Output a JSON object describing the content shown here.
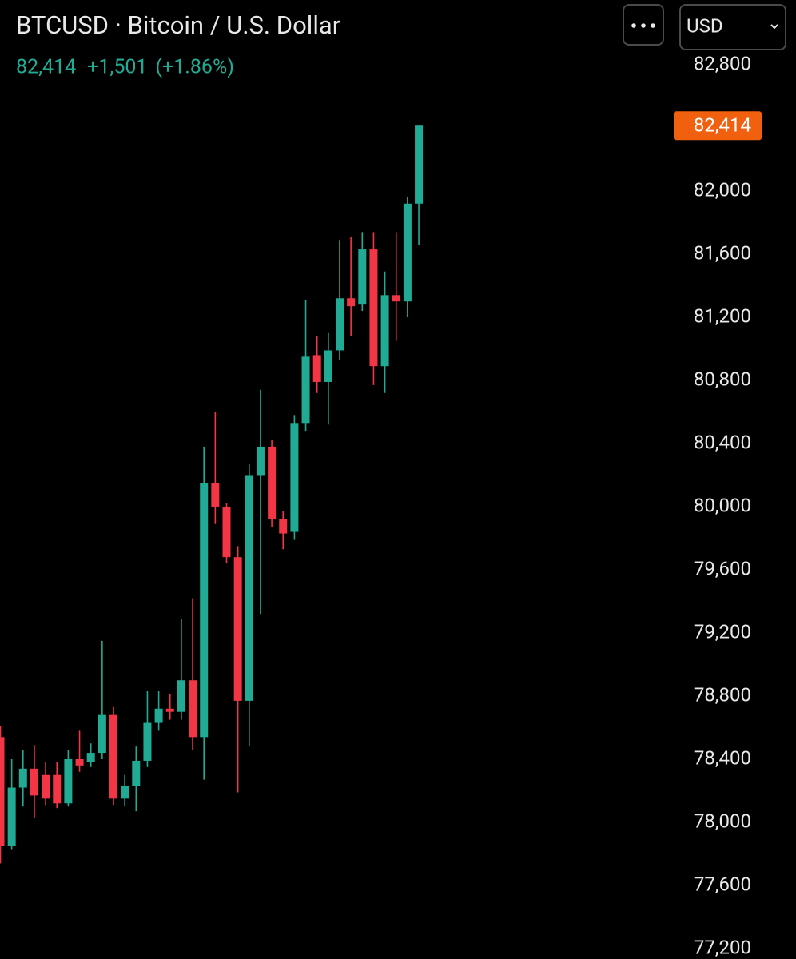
{
  "chart_data": {
    "type": "candlestick",
    "title": "BTCUSD · Bitcoin / U.S. Dollar",
    "quote": {
      "price": "82,414",
      "change": "+1,501",
      "change_pct": "(+1.86%)"
    },
    "currency": "USD",
    "up_color": "#22ab94",
    "down_color": "#f23645",
    "last_price": {
      "value": 82414,
      "label": "82,414"
    },
    "last_price_color": "#f0600f",
    "ylim": [
      77134,
      83210
    ],
    "yticks": [
      {
        "value": 77200,
        "label": "77,200"
      },
      {
        "value": 77600,
        "label": "77,600"
      },
      {
        "value": 78000,
        "label": "78,000"
      },
      {
        "value": 78400,
        "label": "78,400"
      },
      {
        "value": 78800,
        "label": "78,800"
      },
      {
        "value": 79200,
        "label": "79,200"
      },
      {
        "value": 79600,
        "label": "79,600"
      },
      {
        "value": 80000,
        "label": "80,000"
      },
      {
        "value": 80400,
        "label": "80,400"
      },
      {
        "value": 80800,
        "label": "80,800"
      },
      {
        "value": 81200,
        "label": "81,200"
      },
      {
        "value": 81600,
        "label": "81,600"
      },
      {
        "value": 82000,
        "label": "82,000"
      },
      {
        "value": 82400,
        "label": "82,400"
      },
      {
        "value": 82800,
        "label": "82,800"
      }
    ],
    "grid": false,
    "open": [
      78540,
      77850,
      78220,
      78340,
      78300,
      78300,
      78120,
      78400,
      78380,
      78440,
      78680,
      78150,
      78230,
      78390,
      78630,
      78720,
      78700,
      78900,
      78540,
      80150,
      80000,
      79680,
      78770,
      80200,
      80380,
      79920,
      79840,
      80530,
      80960,
      80790,
      80990,
      81320,
      81280,
      81630,
      80890,
      81340,
      81300,
      81920
    ],
    "high": [
      78610,
      78400,
      78460,
      78490,
      78380,
      78380,
      78460,
      78580,
      78500,
      79150,
      78730,
      78300,
      78480,
      78830,
      78830,
      78810,
      79290,
      79420,
      80380,
      80600,
      80020,
      79750,
      80270,
      80740,
      80420,
      79970,
      80580,
      81310,
      81080,
      81100,
      81690,
      81710,
      81740,
      81740,
      81490,
      81740,
      81960,
      82414
    ],
    "low": [
      77740,
      77830,
      78100,
      78030,
      78110,
      78090,
      78100,
      78320,
      78350,
      78400,
      78110,
      78100,
      78070,
      78350,
      78580,
      78650,
      78650,
      78460,
      78270,
      79890,
      79640,
      78190,
      78480,
      79320,
      79870,
      79730,
      79790,
      80480,
      80720,
      80520,
      80930,
      81080,
      81240,
      80770,
      80720,
      81050,
      81200,
      81660
    ],
    "close": [
      77850,
      78220,
      78340,
      78170,
      78150,
      78120,
      78400,
      78360,
      78440,
      78680,
      78150,
      78230,
      78390,
      78630,
      78720,
      78700,
      78900,
      78540,
      80150,
      80000,
      79680,
      78770,
      80200,
      80380,
      79920,
      79830,
      80530,
      80950,
      80790,
      80990,
      81320,
      81270,
      81630,
      80890,
      81340,
      81300,
      81920,
      82414
    ]
  }
}
